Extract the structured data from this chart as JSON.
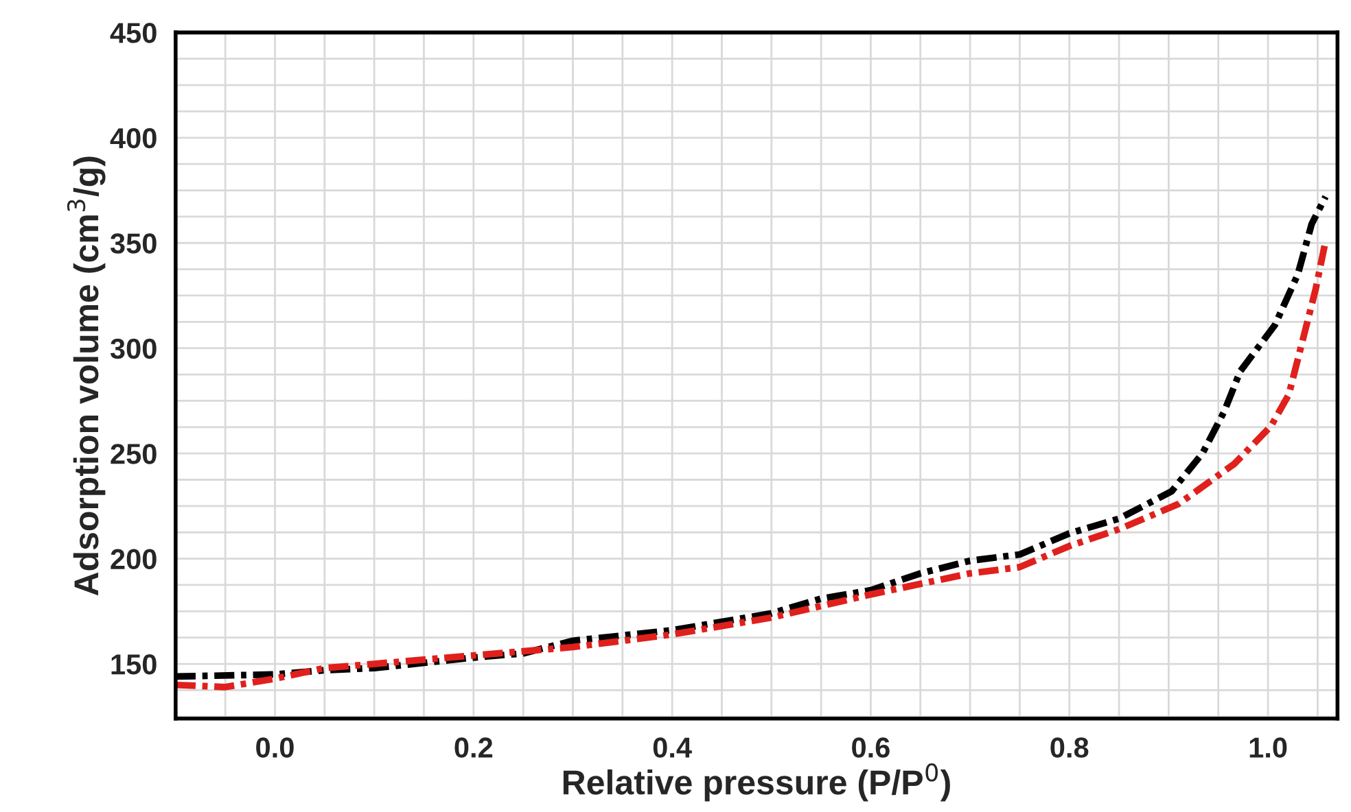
{
  "chart_data": {
    "type": "line",
    "xlabel": "Relative pressure (P/P$^{0}$)",
    "ylabel": "Adsorption volume (cm$^{3}$/g)",
    "xlim": [
      -0.1,
      1.07
    ],
    "ylim": [
      124,
      450
    ],
    "xticks": [
      {
        "value": 0,
        "label": "0.0"
      },
      0.2,
      0.4,
      0.6,
      0.8,
      {
        "value": 1,
        "label": "1.0"
      }
    ],
    "yticks": [
      150,
      200,
      250,
      300,
      350,
      400,
      450
    ],
    "grid": true,
    "line_style": "dashed",
    "marker": "none",
    "series": [
      {
        "color": "#000000",
        "x": [
          -0.1,
          0.0,
          0.05,
          0.1,
          0.2,
          0.25,
          0.3,
          0.4,
          0.5,
          0.55,
          0.6,
          0.65,
          0.7,
          0.75,
          0.8,
          0.85,
          0.903,
          0.934,
          0.956,
          0.972,
          1.007,
          1.03,
          1.044,
          1.058
        ],
        "values": [
          144,
          145,
          147,
          148,
          153,
          155,
          161,
          166,
          174,
          181,
          185,
          193,
          199,
          202,
          212,
          219,
          232,
          250,
          270,
          289,
          311,
          335,
          359,
          372
        ]
      },
      {
        "color": "#e0201c",
        "x": [
          -0.1,
          -0.05,
          0.0,
          0.05,
          0.1,
          0.2,
          0.25,
          0.3,
          0.4,
          0.5,
          0.6,
          0.7,
          0.75,
          0.8,
          0.85,
          0.91,
          0.966,
          1.003,
          1.021,
          1.034,
          1.048,
          1.058
        ],
        "values": [
          140,
          139,
          143,
          148,
          150,
          154,
          156,
          158,
          164,
          172,
          183,
          193,
          196,
          206,
          214,
          226,
          245,
          263,
          278,
          302,
          328,
          351
        ]
      }
    ]
  }
}
